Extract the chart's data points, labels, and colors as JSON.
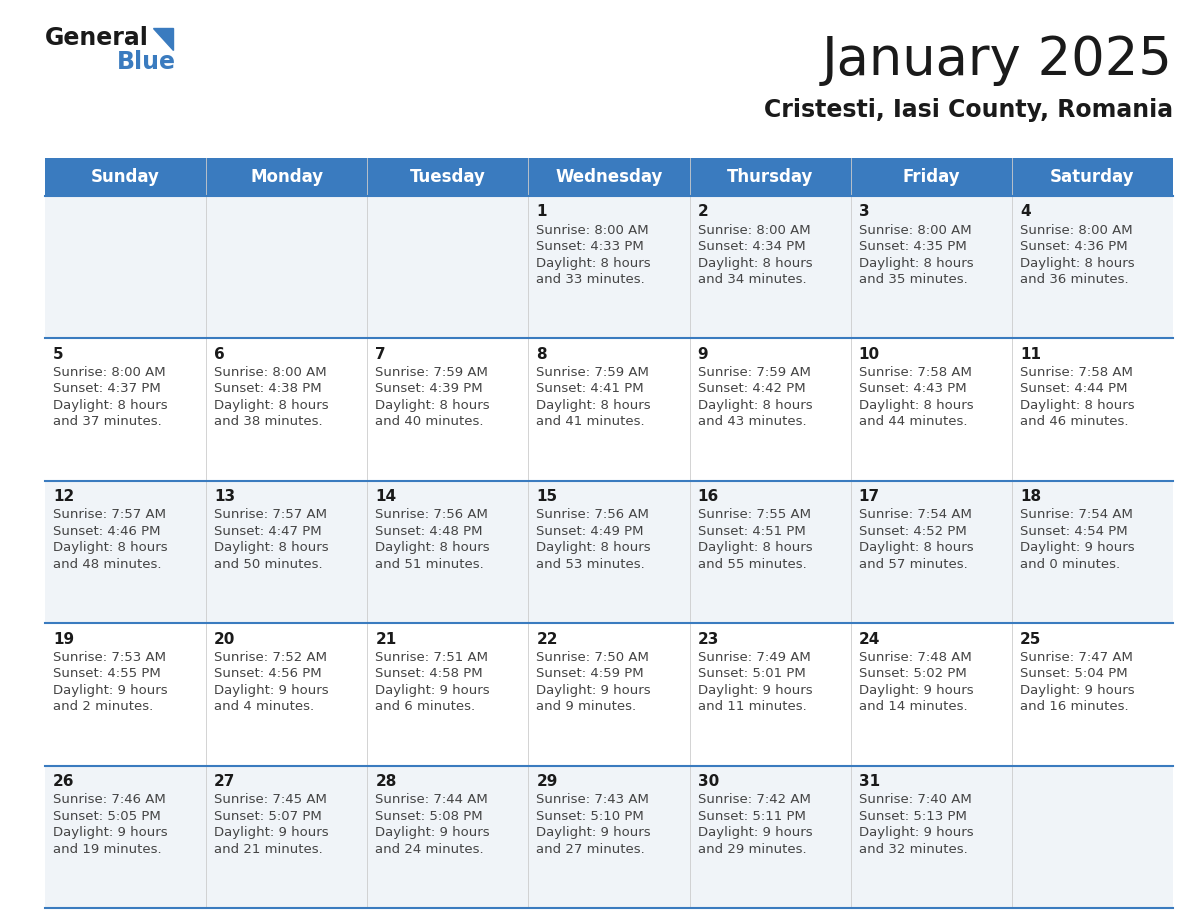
{
  "title": "January 2025",
  "subtitle": "Cristesti, Iasi County, Romania",
  "header_bg_color": "#3a7bbf",
  "header_text_color": "#ffffff",
  "cell_bg_even": "#f0f4f8",
  "cell_bg_odd": "#ffffff",
  "day_names": [
    "Sunday",
    "Monday",
    "Tuesday",
    "Wednesday",
    "Thursday",
    "Friday",
    "Saturday"
  ],
  "weeks": [
    [
      {
        "day": "",
        "sunrise": "",
        "sunset": "",
        "daylight": ""
      },
      {
        "day": "",
        "sunrise": "",
        "sunset": "",
        "daylight": ""
      },
      {
        "day": "",
        "sunrise": "",
        "sunset": "",
        "daylight": ""
      },
      {
        "day": "1",
        "sunrise": "8:00 AM",
        "sunset": "4:33 PM",
        "daylight": "8 hours and 33 minutes."
      },
      {
        "day": "2",
        "sunrise": "8:00 AM",
        "sunset": "4:34 PM",
        "daylight": "8 hours and 34 minutes."
      },
      {
        "day": "3",
        "sunrise": "8:00 AM",
        "sunset": "4:35 PM",
        "daylight": "8 hours and 35 minutes."
      },
      {
        "day": "4",
        "sunrise": "8:00 AM",
        "sunset": "4:36 PM",
        "daylight": "8 hours and 36 minutes."
      }
    ],
    [
      {
        "day": "5",
        "sunrise": "8:00 AM",
        "sunset": "4:37 PM",
        "daylight": "8 hours and 37 minutes."
      },
      {
        "day": "6",
        "sunrise": "8:00 AM",
        "sunset": "4:38 PM",
        "daylight": "8 hours and 38 minutes."
      },
      {
        "day": "7",
        "sunrise": "7:59 AM",
        "sunset": "4:39 PM",
        "daylight": "8 hours and 40 minutes."
      },
      {
        "day": "8",
        "sunrise": "7:59 AM",
        "sunset": "4:41 PM",
        "daylight": "8 hours and 41 minutes."
      },
      {
        "day": "9",
        "sunrise": "7:59 AM",
        "sunset": "4:42 PM",
        "daylight": "8 hours and 43 minutes."
      },
      {
        "day": "10",
        "sunrise": "7:58 AM",
        "sunset": "4:43 PM",
        "daylight": "8 hours and 44 minutes."
      },
      {
        "day": "11",
        "sunrise": "7:58 AM",
        "sunset": "4:44 PM",
        "daylight": "8 hours and 46 minutes."
      }
    ],
    [
      {
        "day": "12",
        "sunrise": "7:57 AM",
        "sunset": "4:46 PM",
        "daylight": "8 hours and 48 minutes."
      },
      {
        "day": "13",
        "sunrise": "7:57 AM",
        "sunset": "4:47 PM",
        "daylight": "8 hours and 50 minutes."
      },
      {
        "day": "14",
        "sunrise": "7:56 AM",
        "sunset": "4:48 PM",
        "daylight": "8 hours and 51 minutes."
      },
      {
        "day": "15",
        "sunrise": "7:56 AM",
        "sunset": "4:49 PM",
        "daylight": "8 hours and 53 minutes."
      },
      {
        "day": "16",
        "sunrise": "7:55 AM",
        "sunset": "4:51 PM",
        "daylight": "8 hours and 55 minutes."
      },
      {
        "day": "17",
        "sunrise": "7:54 AM",
        "sunset": "4:52 PM",
        "daylight": "8 hours and 57 minutes."
      },
      {
        "day": "18",
        "sunrise": "7:54 AM",
        "sunset": "4:54 PM",
        "daylight": "9 hours and 0 minutes."
      }
    ],
    [
      {
        "day": "19",
        "sunrise": "7:53 AM",
        "sunset": "4:55 PM",
        "daylight": "9 hours and 2 minutes."
      },
      {
        "day": "20",
        "sunrise": "7:52 AM",
        "sunset": "4:56 PM",
        "daylight": "9 hours and 4 minutes."
      },
      {
        "day": "21",
        "sunrise": "7:51 AM",
        "sunset": "4:58 PM",
        "daylight": "9 hours and 6 minutes."
      },
      {
        "day": "22",
        "sunrise": "7:50 AM",
        "sunset": "4:59 PM",
        "daylight": "9 hours and 9 minutes."
      },
      {
        "day": "23",
        "sunrise": "7:49 AM",
        "sunset": "5:01 PM",
        "daylight": "9 hours and 11 minutes."
      },
      {
        "day": "24",
        "sunrise": "7:48 AM",
        "sunset": "5:02 PM",
        "daylight": "9 hours and 14 minutes."
      },
      {
        "day": "25",
        "sunrise": "7:47 AM",
        "sunset": "5:04 PM",
        "daylight": "9 hours and 16 minutes."
      }
    ],
    [
      {
        "day": "26",
        "sunrise": "7:46 AM",
        "sunset": "5:05 PM",
        "daylight": "9 hours and 19 minutes."
      },
      {
        "day": "27",
        "sunrise": "7:45 AM",
        "sunset": "5:07 PM",
        "daylight": "9 hours and 21 minutes."
      },
      {
        "day": "28",
        "sunrise": "7:44 AM",
        "sunset": "5:08 PM",
        "daylight": "9 hours and 24 minutes."
      },
      {
        "day": "29",
        "sunrise": "7:43 AM",
        "sunset": "5:10 PM",
        "daylight": "9 hours and 27 minutes."
      },
      {
        "day": "30",
        "sunrise": "7:42 AM",
        "sunset": "5:11 PM",
        "daylight": "9 hours and 29 minutes."
      },
      {
        "day": "31",
        "sunrise": "7:40 AM",
        "sunset": "5:13 PM",
        "daylight": "9 hours and 32 minutes."
      },
      {
        "day": "",
        "sunrise": "",
        "sunset": "",
        "daylight": ""
      }
    ]
  ]
}
